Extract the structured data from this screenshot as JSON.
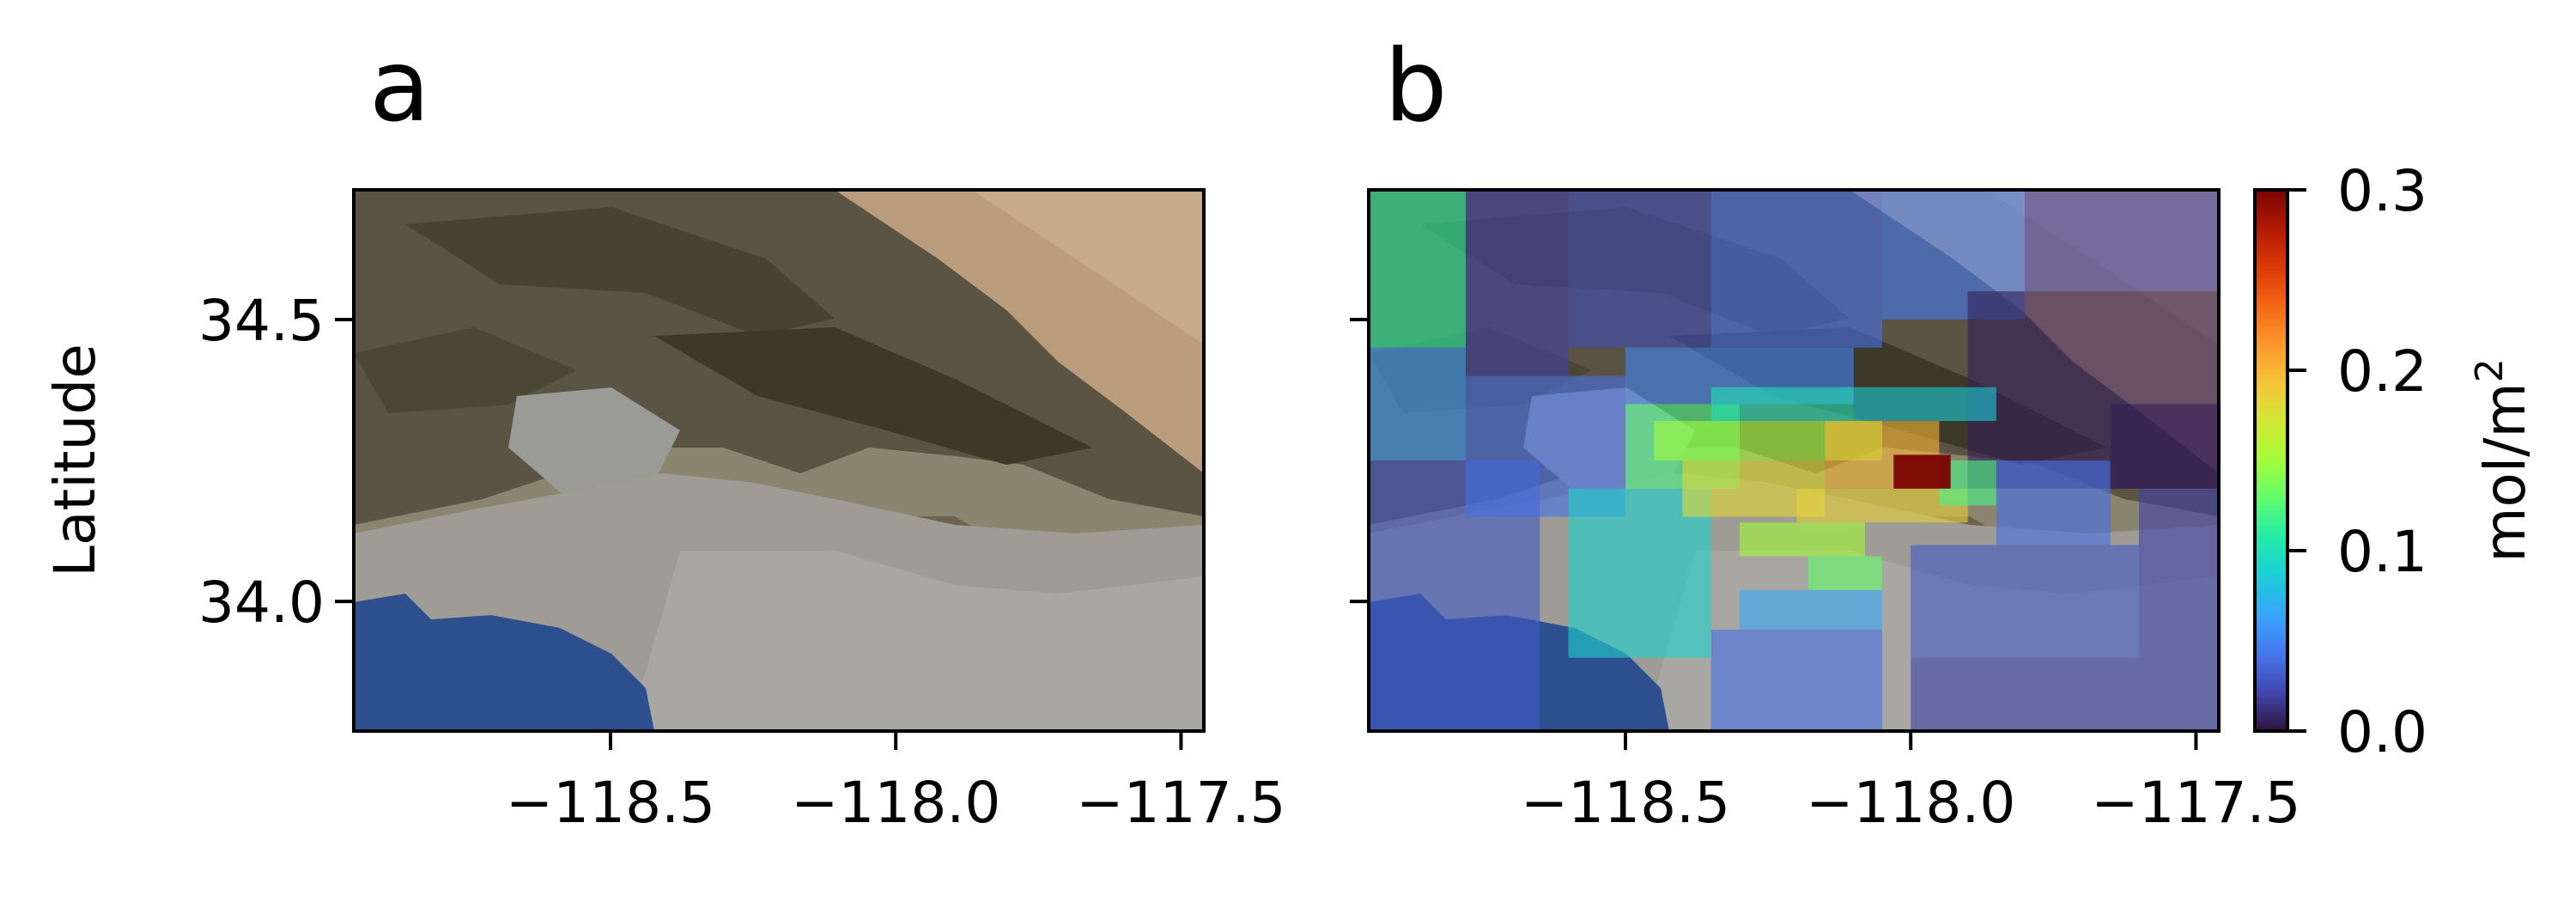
{
  "panels": {
    "a": {
      "label": "a"
    },
    "b": {
      "label": "b"
    }
  },
  "axes": {
    "ylabel": "Latitude",
    "xlim": [
      -118.95,
      -117.46
    ],
    "ylim": [
      33.77,
      34.73
    ],
    "xticks": [
      -118.5,
      -118.0,
      -117.5
    ],
    "xtick_labels": [
      "−118.5",
      "−118.0",
      "−117.5"
    ],
    "yticks": [
      34.0,
      34.5
    ],
    "ytick_labels": [
      "34.0",
      "34.5"
    ]
  },
  "colorbar": {
    "label": "mol/m",
    "label_sup": "2",
    "ticks": [
      0.0,
      0.1,
      0.2,
      0.3
    ],
    "tick_labels": [
      "0.0",
      "0.1",
      "0.2",
      "0.3"
    ],
    "range": [
      0.0,
      0.3
    ],
    "colormap": "turbo"
  },
  "chart_data": [
    {
      "type": "heatmap",
      "panel": "a",
      "title": "",
      "xlabel": "",
      "ylabel": "Latitude",
      "xlim": [
        -118.95,
        -117.46
      ],
      "ylim": [
        33.77,
        34.73
      ],
      "background": "satellite imagery",
      "grid": false
    },
    {
      "type": "heatmap",
      "panel": "b",
      "title": "",
      "xlabel": "",
      "ylabel": "",
      "xlim": [
        -118.95,
        -117.46
      ],
      "ylim": [
        33.77,
        34.73
      ],
      "grid": false,
      "value_range": [
        0.0,
        0.3
      ],
      "cells": [
        {
          "lon0": -118.95,
          "lon1": -118.78,
          "lat0": 34.45,
          "lat1": 34.73,
          "v": 0.11
        },
        {
          "lon0": -118.95,
          "lon1": -118.78,
          "lat0": 34.25,
          "lat1": 34.45,
          "v": 0.06
        },
        {
          "lon0": -118.95,
          "lon1": -118.65,
          "lat0": 33.77,
          "lat1": 34.25,
          "v": 0.03
        },
        {
          "lon0": -118.78,
          "lon1": -118.6,
          "lat0": 34.4,
          "lat1": 34.73,
          "v": 0.02
        },
        {
          "lon0": -118.6,
          "lon1": -118.35,
          "lat0": 34.45,
          "lat1": 34.73,
          "v": 0.025
        },
        {
          "lon0": -118.35,
          "lon1": -118.05,
          "lat0": 34.45,
          "lat1": 34.73,
          "v": 0.04
        },
        {
          "lon0": -118.05,
          "lon1": -117.8,
          "lat0": 34.5,
          "lat1": 34.73,
          "v": 0.045
        },
        {
          "lon0": -117.8,
          "lon1": -117.46,
          "lat0": 34.55,
          "lat1": 34.73,
          "v": 0.02
        },
        {
          "lon0": -117.9,
          "lon1": -117.46,
          "lat0": 34.2,
          "lat1": 34.55,
          "v": 0.005
        },
        {
          "lon0": -118.78,
          "lon1": -118.5,
          "lat0": 34.15,
          "lat1": 34.4,
          "v": 0.04
        },
        {
          "lon0": -118.5,
          "lon1": -118.1,
          "lat0": 34.35,
          "lat1": 34.45,
          "v": 0.05
        },
        {
          "lon0": -118.5,
          "lon1": -118.3,
          "lat0": 34.2,
          "lat1": 34.35,
          "v": 0.12
        },
        {
          "lon0": -118.6,
          "lon1": -118.35,
          "lat0": 33.9,
          "lat1": 34.2,
          "v": 0.09
        },
        {
          "lon0": -118.35,
          "lon1": -118.1,
          "lat0": 34.32,
          "lat1": 34.38,
          "v": 0.1
        },
        {
          "lon0": -118.1,
          "lon1": -117.85,
          "lat0": 34.32,
          "lat1": 34.38,
          "v": 0.085
        },
        {
          "lon0": -118.45,
          "lon1": -118.05,
          "lat0": 34.25,
          "lat1": 34.32,
          "v": 0.15
        },
        {
          "lon0": -118.4,
          "lon1": -118.15,
          "lat0": 34.15,
          "lat1": 34.25,
          "v": 0.18
        },
        {
          "lon0": -118.15,
          "lon1": -117.95,
          "lat0": 34.2,
          "lat1": 34.32,
          "v": 0.2
        },
        {
          "lon0": -118.2,
          "lon1": -117.9,
          "lat0": 34.14,
          "lat1": 34.2,
          "v": 0.185
        },
        {
          "lon0": -118.3,
          "lon1": -118.08,
          "lat0": 34.08,
          "lat1": 34.14,
          "v": 0.15
        },
        {
          "lon0": -118.18,
          "lon1": -118.05,
          "lat0": 34.02,
          "lat1": 34.08,
          "v": 0.13
        },
        {
          "lon0": -118.3,
          "lon1": -118.05,
          "lat0": 33.95,
          "lat1": 34.02,
          "v": 0.065
        },
        {
          "lon0": -118.35,
          "lon1": -118.05,
          "lat0": 33.77,
          "lat1": 33.95,
          "v": 0.04
        },
        {
          "lon0": -117.95,
          "lon1": -117.85,
          "lat0": 34.17,
          "lat1": 34.25,
          "v": 0.12
        },
        {
          "lon0": -117.85,
          "lon1": -117.65,
          "lat0": 34.1,
          "lat1": 34.25,
          "v": 0.04
        },
        {
          "lon0": -117.65,
          "lon1": -117.46,
          "lat0": 34.2,
          "lat1": 34.35,
          "v": 0.005
        },
        {
          "lon0": -118.0,
          "lon1": -117.6,
          "lat0": 33.9,
          "lat1": 34.1,
          "v": 0.03
        },
        {
          "lon0": -117.6,
          "lon1": -117.46,
          "lat0": 33.9,
          "lat1": 34.2,
          "v": 0.02
        },
        {
          "lon0": -118.0,
          "lon1": -117.46,
          "lat0": 33.77,
          "lat1": 33.9,
          "v": 0.02
        },
        {
          "lon0": -118.03,
          "lon1": -117.93,
          "lat0": 34.2,
          "lat1": 34.26,
          "v": 0.3
        }
      ]
    }
  ]
}
